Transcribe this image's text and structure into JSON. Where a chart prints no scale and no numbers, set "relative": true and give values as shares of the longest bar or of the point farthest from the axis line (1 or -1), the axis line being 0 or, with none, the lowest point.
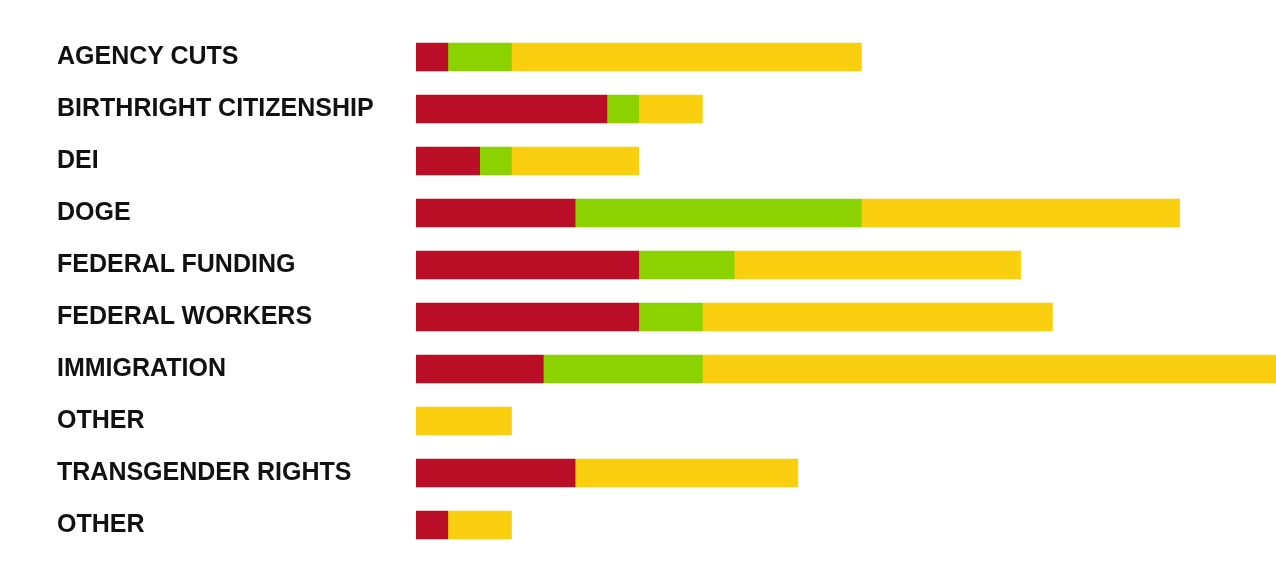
{
  "chart_data": {
    "type": "bar",
    "orientation": "horizontal",
    "stacked": true,
    "relative": true,
    "categories": [
      "AGENCY CUTS",
      "BIRTHRIGHT CITIZENSHIP",
      "DEI",
      "DOGE",
      "FEDERAL FUNDING",
      "FEDERAL WORKERS",
      "IMMIGRATION",
      "OTHER",
      "TRANSGENDER RIGHTS",
      "OTHER"
    ],
    "series": [
      {
        "color": "#b90e25",
        "values": [
          0.037,
          0.222,
          0.074,
          0.185,
          0.259,
          0.259,
          0.148,
          null,
          0.185,
          0.037
        ]
      },
      {
        "color": "#8cd200",
        "values": [
          0.074,
          0.037,
          0.037,
          0.333,
          0.111,
          0.074,
          0.185,
          null,
          null,
          null
        ]
      },
      {
        "color": "#facf0f",
        "values": [
          0.407,
          0.074,
          0.148,
          0.37,
          0.333,
          0.407,
          0.667,
          0.111,
          0.259,
          0.074
        ]
      }
    ]
  }
}
